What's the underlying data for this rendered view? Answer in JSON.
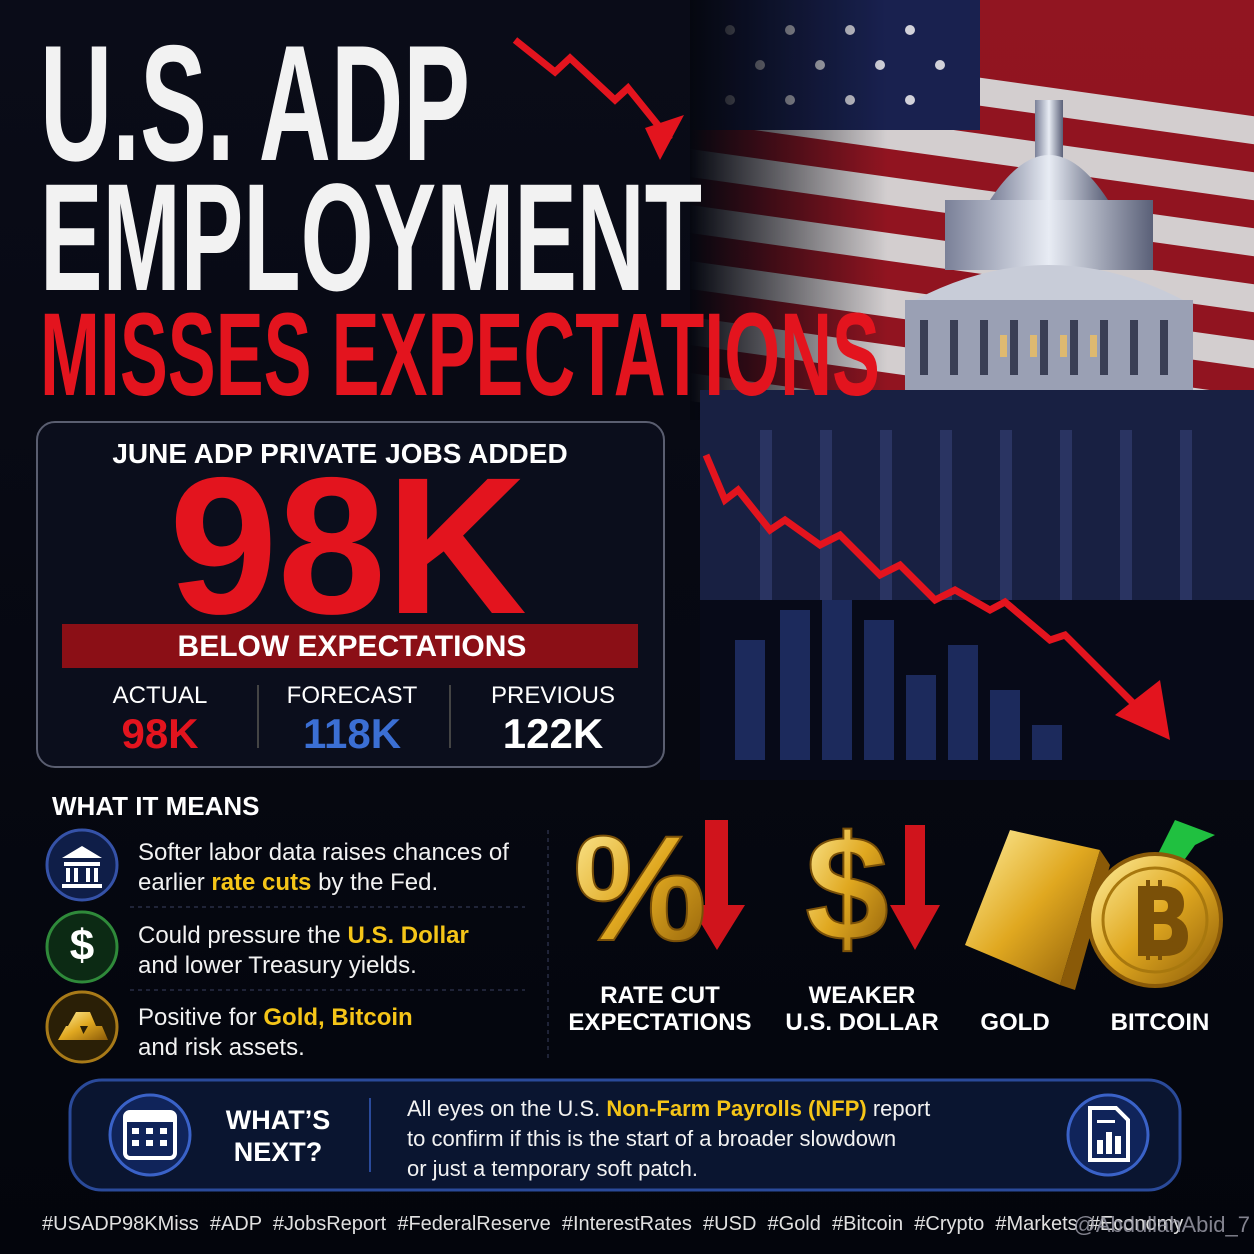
{
  "header": {
    "line1": "U.S. ADP",
    "line2": "EMPLOYMENT",
    "line3": "MISSES EXPECTATIONS"
  },
  "stat_box": {
    "title": "JUNE ADP PRIVATE JOBS ADDED",
    "headline": "98K",
    "banner": "BELOW EXPECTATIONS",
    "metrics": [
      {
        "label": "ACTUAL",
        "value": "98K"
      },
      {
        "label": "FORECAST",
        "value": "118K"
      },
      {
        "label": "PREVIOUS",
        "value": "122K"
      }
    ]
  },
  "what_it_means": {
    "title": "WHAT IT MEANS",
    "items": [
      {
        "icon": "",
        "lines": [
          {
            "text": "Softer labor data raises chances of"
          },
          {
            "text": "earlier ",
            "em": "rate cuts",
            "after": " by the Fed."
          }
        ]
      },
      {
        "icon": "$",
        "lines": [
          {
            "text": "Could pressure the ",
            "em": "U.S. Dollar"
          },
          {
            "text": "and lower Treasury yields."
          }
        ]
      },
      {
        "icon": "",
        "lines": [
          {
            "text": "Positive for ",
            "em": "Gold, Bitcoin"
          },
          {
            "text": "and risk assets."
          }
        ]
      }
    ]
  },
  "impacts": [
    {
      "symbol": "%",
      "label": [
        "RATE CUT",
        "EXPECTATIONS"
      ]
    },
    {
      "symbol": "$",
      "label": [
        "WEAKER",
        "U.S. DOLLAR"
      ]
    },
    {
      "label": [
        "GOLD"
      ]
    },
    {
      "label": [
        "BITCOIN"
      ]
    }
  ],
  "whats_next": {
    "title": [
      "WHAT’S",
      "NEXT?"
    ],
    "lines": [
      {
        "text": "All eyes on the U.S. ",
        "em": "Non-Farm Payrolls (NFP)",
        "after": " report"
      },
      {
        "text": "to confirm if this is the start of a broader slowdown"
      },
      {
        "text": "or just a temporary soft patch."
      }
    ]
  },
  "hashtags": "#USADP98KMiss  #ADP  #JobsReport  #FederalReserve  #InterestRates  #USD  #Gold  #Bitcoin  #Crypto  #Markets  #Economy",
  "watermark": "@AbdullahAbid_7"
}
